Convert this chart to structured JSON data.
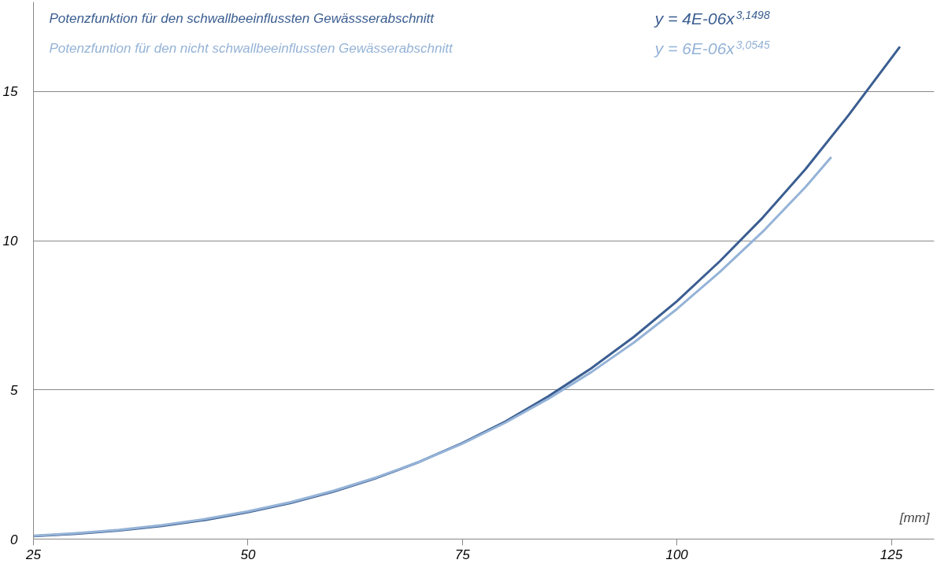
{
  "chart_data": {
    "type": "line",
    "xlabel": "[mm]",
    "x": [
      25,
      30,
      35,
      40,
      45,
      50,
      55,
      60,
      65,
      70,
      75,
      80,
      85,
      90,
      95,
      100,
      105,
      110,
      115,
      120,
      126
    ],
    "series": [
      {
        "name": "Potenzfunktion für den schwallbeeinflussten Gewässserabschnitt",
        "color": "#3b5e91",
        "values": [
          0.1,
          0.18,
          0.29,
          0.44,
          0.64,
          0.9,
          1.21,
          1.59,
          2.05,
          2.59,
          3.22,
          3.94,
          4.78,
          5.72,
          6.78,
          7.97,
          9.31,
          10.77,
          12.4,
          14.2,
          16.5
        ]
      },
      {
        "name": "Potenzfuntion für den nicht schwallbeeinflussten Gewässerabschnitt",
        "color": "#95b3d7",
        "x": [
          25,
          30,
          35,
          40,
          45,
          50,
          55,
          60,
          65,
          70,
          75,
          80,
          85,
          90,
          95,
          100,
          105,
          110,
          115,
          118
        ],
        "values": [
          0.11,
          0.2,
          0.31,
          0.47,
          0.67,
          0.93,
          1.24,
          1.62,
          2.07,
          2.59,
          3.2,
          3.9,
          4.7,
          5.59,
          6.59,
          7.71,
          8.95,
          10.3,
          11.8,
          12.8
        ]
      }
    ],
    "annotations": [
      "y = 4E-06x$^{3,1498}$",
      "y = 6E-06x$^{3,0545}$"
    ],
    "xlim": [
      25,
      130
    ],
    "ylim": [
      0,
      18
    ],
    "xticks": [
      25,
      50,
      75,
      100,
      125
    ],
    "yticks": [
      0,
      5,
      10,
      15
    ],
    "grid": "y",
    "legend": "top",
    "marker": "none",
    "line_style": "solid"
  }
}
